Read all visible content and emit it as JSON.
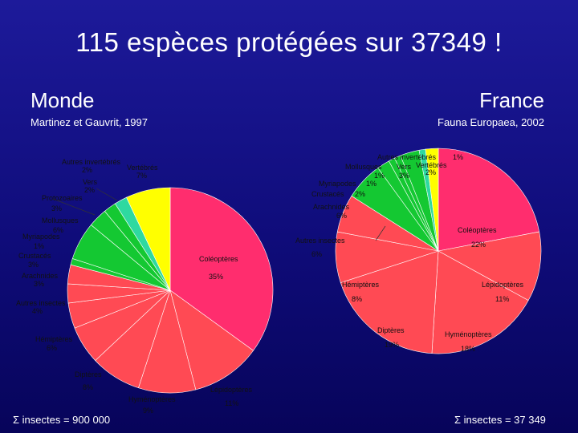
{
  "slide": {
    "title": "115 espèces protégées sur 37349 !",
    "left_header": "Monde",
    "right_header": "France",
    "left_source": "Martinez et Gauvrit, 1997",
    "right_source": "Fauna Europaea, 2002",
    "left_sum": "Σ insectes = 900 000",
    "right_sum": "Σ insectes = 37 349"
  },
  "chart_data": [
    {
      "type": "pie",
      "title": "Monde",
      "categories": [
        "Coléoptères",
        "Lépidoptères",
        "Hyménoptères",
        "Diptères",
        "Hémiptères",
        "Autres insectes",
        "Arachnides",
        "Crustacés",
        "Myriapodes",
        "Mollusques",
        "Protozoaires",
        "Vers",
        "Autres invertébrés",
        "Vertébrés"
      ],
      "values": [
        35,
        11,
        9,
        8,
        6,
        4,
        3,
        3,
        1,
        6,
        3,
        2,
        2,
        7
      ],
      "value_labels": [
        "35%",
        "11%",
        "9%",
        "8%",
        "6%",
        "4%",
        "3%",
        "3%",
        "1%",
        "6%",
        "3%",
        "2%",
        "2%",
        "7%"
      ],
      "colors": [
        "#ff2d6e",
        "#ff4a54",
        "#ff4a54",
        "#ff4a54",
        "#ff4a54",
        "#ff4a54",
        "#ff4a54",
        "#ff4a54",
        "#14c832",
        "#14c832",
        "#14c832",
        "#14c832",
        "#2ed9a0",
        "#ffff00"
      ]
    },
    {
      "type": "pie",
      "title": "France",
      "categories": [
        "Coléoptères",
        "Lépidoptères",
        "Hyménoptères",
        "Diptères",
        "Hémiptères",
        "Autres insectes",
        "Arachnides",
        "Crustacés",
        "Myriapodes",
        "Mollusques",
        "Vers",
        "Autres invertébrés",
        "Vertébrés"
      ],
      "values": [
        22,
        11,
        18,
        19,
        8,
        6,
        6,
        2,
        1,
        1,
        3,
        1,
        2
      ],
      "value_labels": [
        "22%",
        "11%",
        "18%",
        "19%",
        "8%",
        "6%",
        "6%",
        "2%",
        "1%",
        "1%",
        "3%",
        "1%",
        "2%"
      ],
      "colors": [
        "#ff2d6e",
        "#ff4a54",
        "#ff4a54",
        "#ff4a54",
        "#ff4a54",
        "#ff4a54",
        "#14c832",
        "#14c832",
        "#14c832",
        "#14c832",
        "#14c832",
        "#2ed9a0",
        "#ffff00"
      ]
    }
  ]
}
